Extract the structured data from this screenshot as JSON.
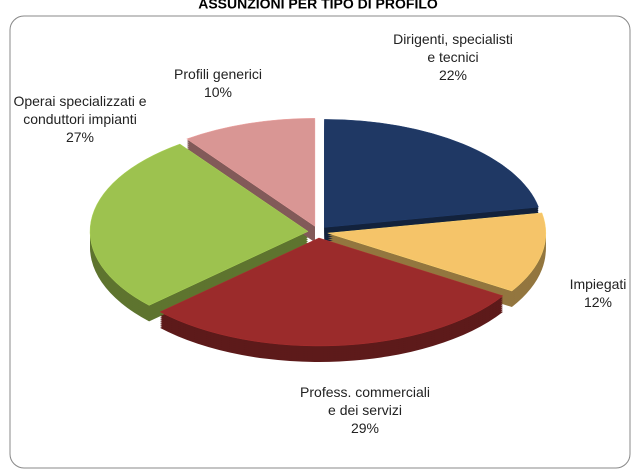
{
  "chart_data": {
    "type": "pie",
    "title": "ASSUNZIONI PER TIPO DI PROFILO",
    "categories": [
      "Dirigenti, specialisti e tecnici",
      "Impiegati",
      "Profess. commerciali e dei servizi",
      "Operai specializzati e conduttori impianti",
      "Profili generici"
    ],
    "values": [
      22,
      12,
      29,
      27,
      10
    ],
    "value_labels": [
      "22%",
      "12%",
      "29%",
      "27%",
      "10%"
    ],
    "colors": [
      "#1f3864",
      "#f5c469",
      "#9b2b2b",
      "#9dc24f",
      "#d99694"
    ]
  }
}
